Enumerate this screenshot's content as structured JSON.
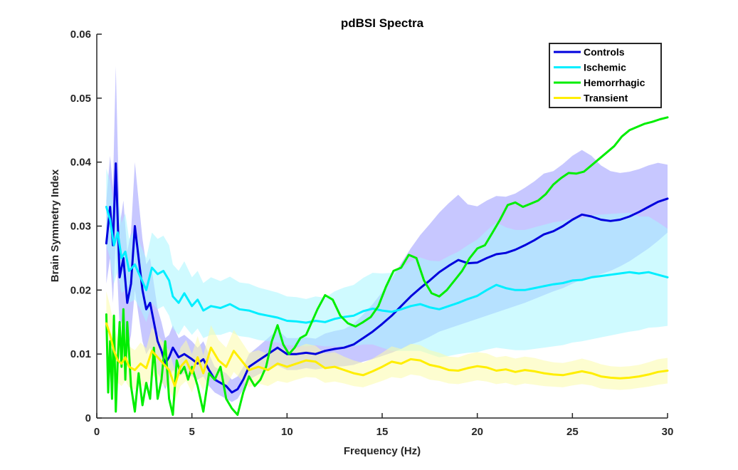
{
  "chart_data": {
    "type": "line",
    "title": "pdBSI Spectra",
    "xlabel": "Frequency (Hz)",
    "ylabel": "Brain Symmetry Index",
    "xlim": [
      0,
      30
    ],
    "ylim": [
      0,
      0.06
    ],
    "xticks": [
      0,
      5,
      10,
      15,
      20,
      25,
      30
    ],
    "yticks": [
      0,
      0.01,
      0.02,
      0.03,
      0.04,
      0.05,
      0.06
    ],
    "xtick_labels": [
      "0",
      "5",
      "10",
      "15",
      "20",
      "25",
      "30"
    ],
    "ytick_labels": [
      "0",
      "0.01",
      "0.02",
      "0.03",
      "0.04",
      "0.05",
      "0.06"
    ],
    "grid": false,
    "legend_position": "top-right",
    "series": [
      {
        "name": "Controls",
        "color": "#0000dd",
        "band_color": "#9999ff",
        "x": [
          0.5,
          0.7,
          0.85,
          1.0,
          1.2,
          1.4,
          1.6,
          1.8,
          2.0,
          2.2,
          2.4,
          2.6,
          2.8,
          3.0,
          3.2,
          3.4,
          3.6,
          3.8,
          4.0,
          4.3,
          4.6,
          5.0,
          5.3,
          5.6,
          5.9,
          6.2,
          6.5,
          6.8,
          7.1,
          7.4,
          7.7,
          8.0,
          8.5,
          9.0,
          9.5,
          10.0,
          10.5,
          11.0,
          11.5,
          12.0,
          12.5,
          13.0,
          13.5,
          14.0,
          14.5,
          15.0,
          15.5,
          16.0,
          16.5,
          17.0,
          17.5,
          18.0,
          18.5,
          19.0,
          19.5,
          20.0,
          20.5,
          21.0,
          21.5,
          22.0,
          22.5,
          23.0,
          23.5,
          24.0,
          24.5,
          25.0,
          25.5,
          26.0,
          26.5,
          27.0,
          27.5,
          28.0,
          28.5,
          29.0,
          29.5,
          30.0
        ],
        "y": [
          0.0273,
          0.033,
          0.027,
          0.0398,
          0.022,
          0.025,
          0.018,
          0.021,
          0.03,
          0.025,
          0.02,
          0.017,
          0.018,
          0.015,
          0.012,
          0.0105,
          0.0085,
          0.0095,
          0.011,
          0.0095,
          0.01,
          0.0092,
          0.0085,
          0.0092,
          0.0075,
          0.006,
          0.0055,
          0.005,
          0.004,
          0.0045,
          0.006,
          0.008,
          0.009,
          0.01,
          0.011,
          0.01,
          0.01,
          0.0102,
          0.01,
          0.0105,
          0.0108,
          0.011,
          0.0115,
          0.0125,
          0.0135,
          0.0147,
          0.016,
          0.0175,
          0.019,
          0.0203,
          0.0215,
          0.0228,
          0.0238,
          0.0247,
          0.0242,
          0.0243,
          0.025,
          0.0256,
          0.0258,
          0.0263,
          0.027,
          0.0278,
          0.0287,
          0.0292,
          0.03,
          0.031,
          0.0318,
          0.0315,
          0.031,
          0.0308,
          0.031,
          0.0315,
          0.0322,
          0.033,
          0.0338,
          0.0343
        ],
        "band_lower": [
          0.021,
          0.025,
          0.018,
          0.028,
          0.014,
          0.016,
          0.01,
          0.013,
          0.02,
          0.016,
          0.012,
          0.01,
          0.011,
          0.009,
          0.007,
          0.006,
          0.0045,
          0.006,
          0.0075,
          0.0065,
          0.007,
          0.0065,
          0.006,
          0.0065,
          0.005,
          0.004,
          0.0035,
          0.003,
          0.0025,
          0.003,
          0.0045,
          0.006,
          0.0068,
          0.0075,
          0.0082,
          0.0075,
          0.0075,
          0.0078,
          0.0076,
          0.0078,
          0.008,
          0.0081,
          0.0083,
          0.0088,
          0.0092,
          0.0097,
          0.0102,
          0.0108,
          0.0115,
          0.012,
          0.0127,
          0.0135,
          0.014,
          0.0145,
          0.015,
          0.0155,
          0.016,
          0.0165,
          0.017,
          0.0175,
          0.018,
          0.0186,
          0.0192,
          0.0198,
          0.0203,
          0.021,
          0.0217,
          0.022,
          0.0225,
          0.023,
          0.0237,
          0.0245,
          0.0255,
          0.0265,
          0.0277,
          0.029
        ],
        "band_upper": [
          0.034,
          0.041,
          0.036,
          0.055,
          0.03,
          0.034,
          0.026,
          0.029,
          0.04,
          0.034,
          0.028,
          0.024,
          0.025,
          0.021,
          0.017,
          0.015,
          0.0125,
          0.013,
          0.0145,
          0.0125,
          0.013,
          0.012,
          0.011,
          0.012,
          0.01,
          0.008,
          0.0075,
          0.007,
          0.006,
          0.0065,
          0.008,
          0.01,
          0.0112,
          0.0125,
          0.0138,
          0.0125,
          0.0125,
          0.0126,
          0.0124,
          0.0132,
          0.0136,
          0.0139,
          0.0147,
          0.0162,
          0.0178,
          0.0197,
          0.0218,
          0.0242,
          0.0265,
          0.0286,
          0.0303,
          0.0321,
          0.0336,
          0.0349,
          0.0334,
          0.0331,
          0.034,
          0.0347,
          0.0346,
          0.0351,
          0.036,
          0.037,
          0.0382,
          0.0386,
          0.0397,
          0.041,
          0.0419,
          0.041,
          0.0395,
          0.0386,
          0.0383,
          0.0385,
          0.0389,
          0.0395,
          0.0399,
          0.0396
        ]
      },
      {
        "name": "Ischemic",
        "color": "#00eeff",
        "band_color": "#a8f5ff",
        "x": [
          0.5,
          0.7,
          0.9,
          1.1,
          1.3,
          1.5,
          1.7,
          2.0,
          2.3,
          2.6,
          2.9,
          3.2,
          3.5,
          3.8,
          4.0,
          4.3,
          4.6,
          5.0,
          5.3,
          5.6,
          6.0,
          6.5,
          7.0,
          7.5,
          8.0,
          8.5,
          9.0,
          9.5,
          10.0,
          10.5,
          11.0,
          11.5,
          12.0,
          12.5,
          13.0,
          13.5,
          14.0,
          14.5,
          15.0,
          15.5,
          16.0,
          16.5,
          17.0,
          17.5,
          18.0,
          18.5,
          19.0,
          19.5,
          20.0,
          20.5,
          21.0,
          21.5,
          22.0,
          22.5,
          23.0,
          23.5,
          24.0,
          24.5,
          25.0,
          25.5,
          26.0,
          26.5,
          27.0,
          27.5,
          28.0,
          28.5,
          29.0,
          29.5,
          30.0
        ],
        "y": [
          0.033,
          0.031,
          0.027,
          0.029,
          0.025,
          0.026,
          0.023,
          0.024,
          0.022,
          0.02,
          0.0235,
          0.0225,
          0.023,
          0.0215,
          0.019,
          0.018,
          0.0195,
          0.0175,
          0.0185,
          0.0168,
          0.0175,
          0.0172,
          0.0178,
          0.017,
          0.0168,
          0.0163,
          0.016,
          0.0157,
          0.0152,
          0.0151,
          0.0149,
          0.0152,
          0.015,
          0.0155,
          0.0158,
          0.016,
          0.0167,
          0.0171,
          0.0168,
          0.0166,
          0.017,
          0.0175,
          0.0178,
          0.0173,
          0.017,
          0.0175,
          0.018,
          0.0186,
          0.0191,
          0.02,
          0.0208,
          0.0203,
          0.02,
          0.02,
          0.0203,
          0.0206,
          0.0209,
          0.0211,
          0.0215,
          0.0216,
          0.022,
          0.0222,
          0.0224,
          0.0226,
          0.0228,
          0.0226,
          0.0228,
          0.0224,
          0.022
        ],
        "band_lower": [
          0.027,
          0.025,
          0.021,
          0.023,
          0.0195,
          0.02,
          0.018,
          0.0185,
          0.017,
          0.015,
          0.018,
          0.017,
          0.0175,
          0.016,
          0.014,
          0.013,
          0.0145,
          0.013,
          0.014,
          0.0125,
          0.013,
          0.013,
          0.0135,
          0.0128,
          0.0126,
          0.0122,
          0.012,
          0.0118,
          0.0114,
          0.0113,
          0.0112,
          0.0114,
          0.0112,
          0.0112,
          0.0112,
          0.0112,
          0.0115,
          0.0115,
          0.011,
          0.0105,
          0.0105,
          0.0105,
          0.0105,
          0.01,
          0.0095,
          0.0097,
          0.01,
          0.0102,
          0.0103,
          0.0107,
          0.011,
          0.0108,
          0.0106,
          0.0106,
          0.0108,
          0.011,
          0.0112,
          0.0114,
          0.0118,
          0.012,
          0.0123,
          0.0126,
          0.0129,
          0.0132,
          0.0135,
          0.0137,
          0.0141,
          0.0142,
          0.0144
        ],
        "band_upper": [
          0.039,
          0.037,
          0.033,
          0.035,
          0.0305,
          0.032,
          0.028,
          0.0295,
          0.027,
          0.025,
          0.029,
          0.028,
          0.0285,
          0.027,
          0.024,
          0.023,
          0.0245,
          0.022,
          0.023,
          0.0211,
          0.022,
          0.0214,
          0.0221,
          0.0212,
          0.021,
          0.0204,
          0.02,
          0.0196,
          0.019,
          0.0189,
          0.0186,
          0.019,
          0.0188,
          0.0198,
          0.0204,
          0.0208,
          0.0219,
          0.0227,
          0.0226,
          0.0227,
          0.0235,
          0.0245,
          0.0251,
          0.0246,
          0.0245,
          0.0253,
          0.026,
          0.027,
          0.0279,
          0.0293,
          0.0306,
          0.0298,
          0.0294,
          0.0294,
          0.0298,
          0.0302,
          0.0306,
          0.0308,
          0.0312,
          0.0312,
          0.0317,
          0.0318,
          0.0319,
          0.032,
          0.0321,
          0.0315,
          0.0315,
          0.0306,
          0.0296
        ]
      },
      {
        "name": "Hemorrhagic",
        "color": "#00ee00",
        "band_color": "#a0f0a0",
        "x": [
          0.5,
          0.6,
          0.7,
          0.8,
          0.9,
          1.0,
          1.1,
          1.2,
          1.3,
          1.4,
          1.5,
          1.6,
          1.8,
          2.0,
          2.2,
          2.4,
          2.6,
          2.8,
          3.0,
          3.2,
          3.4,
          3.6,
          3.8,
          4.0,
          4.2,
          4.4,
          4.6,
          4.8,
          5.0,
          5.3,
          5.6,
          5.9,
          6.2,
          6.5,
          6.8,
          7.1,
          7.4,
          7.7,
          8.0,
          8.3,
          8.6,
          8.9,
          9.2,
          9.5,
          9.8,
          10.1,
          10.4,
          10.7,
          11.0,
          11.3,
          11.6,
          12.0,
          12.4,
          12.8,
          13.2,
          13.6,
          14.0,
          14.4,
          14.8,
          15.2,
          15.6,
          16.0,
          16.4,
          16.8,
          17.2,
          17.6,
          18.0,
          18.4,
          18.8,
          19.2,
          19.6,
          20.0,
          20.4,
          20.8,
          21.2,
          21.6,
          22.0,
          22.4,
          22.8,
          23.2,
          23.6,
          24.0,
          24.4,
          24.8,
          25.2,
          25.6,
          26.0,
          26.4,
          26.8,
          27.2,
          27.6,
          28.0,
          28.4,
          28.8,
          29.2,
          29.6,
          30.0
        ],
        "y": [
          0.0162,
          0.004,
          0.012,
          0.003,
          0.016,
          0.001,
          0.009,
          0.015,
          0.008,
          0.017,
          0.006,
          0.015,
          0.005,
          0.001,
          0.007,
          0.002,
          0.0055,
          0.003,
          0.011,
          0.003,
          0.006,
          0.012,
          0.003,
          0.0005,
          0.009,
          0.007,
          0.008,
          0.006,
          0.008,
          0.005,
          0.001,
          0.007,
          0.006,
          0.008,
          0.003,
          0.0015,
          0.0005,
          0.004,
          0.0065,
          0.005,
          0.006,
          0.008,
          0.012,
          0.0145,
          0.0115,
          0.01,
          0.011,
          0.0125,
          0.013,
          0.015,
          0.017,
          0.0192,
          0.0185,
          0.016,
          0.0148,
          0.0143,
          0.015,
          0.0158,
          0.0175,
          0.0205,
          0.023,
          0.0235,
          0.0255,
          0.025,
          0.0215,
          0.0195,
          0.019,
          0.02,
          0.0215,
          0.023,
          0.025,
          0.0265,
          0.027,
          0.029,
          0.031,
          0.0333,
          0.0337,
          0.033,
          0.0335,
          0.034,
          0.035,
          0.0365,
          0.0375,
          0.0383,
          0.0382,
          0.0385,
          0.0395,
          0.0405,
          0.0415,
          0.0425,
          0.044,
          0.045,
          0.0455,
          0.046,
          0.0463,
          0.0467,
          0.047
        ]
      },
      {
        "name": "Transient",
        "color": "#ffee00",
        "band_color": "#fbfbaa",
        "x": [
          0.5,
          0.7,
          0.9,
          1.1,
          1.3,
          1.5,
          1.7,
          2.0,
          2.3,
          2.6,
          2.9,
          3.2,
          3.5,
          3.8,
          4.1,
          4.4,
          4.7,
          5.0,
          5.3,
          5.6,
          6.0,
          6.4,
          6.8,
          7.2,
          7.6,
          8.0,
          8.5,
          9.0,
          9.5,
          10.0,
          10.5,
          11.0,
          11.5,
          12.0,
          12.5,
          13.0,
          13.5,
          14.0,
          14.5,
          15.0,
          15.5,
          16.0,
          16.5,
          17.0,
          17.5,
          18.0,
          18.5,
          19.0,
          19.5,
          20.0,
          20.5,
          21.0,
          21.5,
          22.0,
          22.5,
          23.0,
          23.5,
          24.0,
          24.5,
          25.0,
          25.5,
          26.0,
          26.5,
          27.0,
          27.5,
          28.0,
          28.5,
          29.0,
          29.5,
          30.0
        ],
        "y": [
          0.0148,
          0.013,
          0.0105,
          0.009,
          0.0085,
          0.0095,
          0.008,
          0.0075,
          0.0085,
          0.0078,
          0.0105,
          0.0095,
          0.0085,
          0.0075,
          0.005,
          0.008,
          0.009,
          0.007,
          0.0095,
          0.007,
          0.011,
          0.009,
          0.008,
          0.0105,
          0.009,
          0.0075,
          0.008,
          0.0075,
          0.0085,
          0.008,
          0.0085,
          0.009,
          0.0088,
          0.0078,
          0.008,
          0.0075,
          0.007,
          0.0067,
          0.0073,
          0.008,
          0.0088,
          0.0085,
          0.0092,
          0.009,
          0.0083,
          0.008,
          0.0075,
          0.0074,
          0.0078,
          0.0081,
          0.0079,
          0.0074,
          0.0076,
          0.0072,
          0.0075,
          0.0073,
          0.007,
          0.0068,
          0.0067,
          0.007,
          0.0073,
          0.007,
          0.0065,
          0.0063,
          0.0062,
          0.0063,
          0.0065,
          0.0068,
          0.0072,
          0.0074
        ],
        "band_lower": [
          0.0098,
          0.0085,
          0.0065,
          0.0055,
          0.005,
          0.0058,
          0.0048,
          0.0044,
          0.0052,
          0.0047,
          0.0068,
          0.006,
          0.0052,
          0.0045,
          0.0025,
          0.005,
          0.0058,
          0.004,
          0.0062,
          0.0042,
          0.0075,
          0.0058,
          0.005,
          0.0072,
          0.006,
          0.0048,
          0.0054,
          0.005,
          0.0058,
          0.0055,
          0.006,
          0.0064,
          0.0063,
          0.0055,
          0.0057,
          0.0054,
          0.005,
          0.0048,
          0.0053,
          0.0058,
          0.0064,
          0.0062,
          0.0068,
          0.0066,
          0.006,
          0.0058,
          0.0054,
          0.0053,
          0.0056,
          0.0059,
          0.0057,
          0.0053,
          0.0055,
          0.0051,
          0.0054,
          0.0052,
          0.005,
          0.0049,
          0.0048,
          0.0051,
          0.0053,
          0.0051,
          0.0046,
          0.0045,
          0.0044,
          0.0045,
          0.0047,
          0.0049,
          0.0052,
          0.0054
        ],
        "band_upper": [
          0.0198,
          0.0175,
          0.0145,
          0.0125,
          0.012,
          0.0132,
          0.0112,
          0.0106,
          0.0118,
          0.0109,
          0.0142,
          0.013,
          0.0118,
          0.0105,
          0.0075,
          0.011,
          0.0122,
          0.01,
          0.0128,
          0.0098,
          0.0145,
          0.0122,
          0.011,
          0.0138,
          0.012,
          0.0102,
          0.0106,
          0.01,
          0.0112,
          0.0105,
          0.011,
          0.0116,
          0.0113,
          0.0101,
          0.0103,
          0.0096,
          0.009,
          0.0086,
          0.0093,
          0.0102,
          0.0112,
          0.0108,
          0.0116,
          0.0114,
          0.0106,
          0.0102,
          0.0096,
          0.0095,
          0.01,
          0.0103,
          0.0101,
          0.0095,
          0.0097,
          0.0093,
          0.0096,
          0.0094,
          0.009,
          0.0087,
          0.0086,
          0.0089,
          0.0093,
          0.0089,
          0.0084,
          0.0081,
          0.008,
          0.0081,
          0.0083,
          0.0087,
          0.0092,
          0.0094
        ]
      }
    ]
  }
}
